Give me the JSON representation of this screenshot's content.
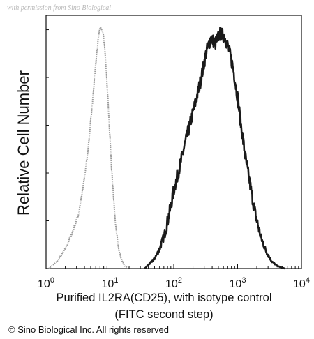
{
  "watermark": "with permission from Sino Biological",
  "copyright": "© Sino Biological Inc. All rights reserved",
  "chart_data": {
    "type": "line",
    "ylabel": "Relative Cell Number",
    "xlabel_lines": [
      "Purified IL2RA(CD25), with isotype control",
      "(FITC second step)"
    ],
    "x_scale": "log",
    "xlim": [
      1,
      10000
    ],
    "x_ticks": [
      {
        "base": "10",
        "exp": "0",
        "value": 1
      },
      {
        "base": "10",
        "exp": "1",
        "value": 10
      },
      {
        "base": "10",
        "exp": "2",
        "value": 100
      },
      {
        "base": "10",
        "exp": "3",
        "value": 1000
      },
      {
        "base": "10",
        "exp": "4",
        "value": 10000
      }
    ],
    "ylim": [
      0,
      100
    ],
    "grid": false,
    "series": [
      {
        "role": "isotype control",
        "color": "#9a9a9a",
        "style": "dotted",
        "x": [
          1.1,
          1.5,
          2.0,
          2.6,
          3.2,
          3.8,
          4.4,
          5.0,
          5.6,
          6.2,
          6.8,
          7.3,
          7.8,
          8.3,
          8.9,
          9.6,
          10.4,
          11.3,
          12.3,
          13.5,
          15.0,
          17.0,
          20.0
        ],
        "y": [
          0,
          3,
          8,
          15,
          22,
          33,
          45,
          60,
          75,
          88,
          96,
          99,
          97,
          90,
          78,
          63,
          45,
          30,
          18,
          9,
          4,
          1,
          0
        ]
      },
      {
        "role": "IL2RA(CD25)",
        "color": "#1a1a1a",
        "style": "solid",
        "x": [
          35,
          42,
          50,
          60,
          72,
          86,
          100,
          125,
          150,
          180,
          220,
          270,
          320,
          380,
          450,
          530,
          620,
          720,
          850,
          1000,
          1150,
          1350,
          1600,
          1900,
          2300,
          2800,
          3400,
          4200,
          5500
        ],
        "y": [
          0,
          2,
          4,
          8,
          14,
          23,
          32,
          42,
          51,
          59,
          68,
          78,
          88,
          94,
          92,
          96,
          95,
          90,
          82,
          70,
          57,
          44,
          33,
          22,
          13,
          7,
          3,
          1,
          0
        ]
      }
    ]
  }
}
